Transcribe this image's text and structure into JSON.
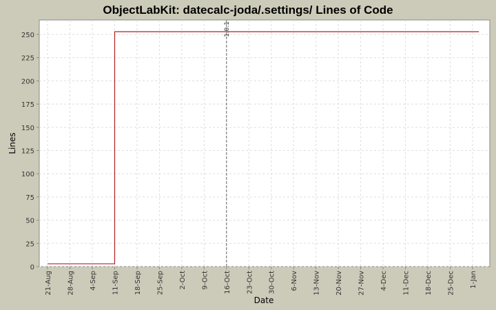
{
  "chart_data": {
    "type": "line",
    "title": "ObjectLabKit: datecalc-joda/.settings/ Lines of Code",
    "x_label": "Date",
    "y_label": "Lines",
    "x": [
      0,
      21,
      21,
      135
    ],
    "series": [
      {
        "name": "Lines",
        "color": "#b02020",
        "values": [
          3,
          3,
          253,
          253
        ]
      }
    ],
    "xlim": [
      -2.6,
      138.4
    ],
    "xticks": [
      {
        "value": 0,
        "label": "21-Aug"
      },
      {
        "value": 7,
        "label": "28-Aug"
      },
      {
        "value": 14,
        "label": "4-Sep"
      },
      {
        "value": 21,
        "label": "11-Sep"
      },
      {
        "value": 28,
        "label": "18-Sep"
      },
      {
        "value": 35,
        "label": "25-Sep"
      },
      {
        "value": 42,
        "label": "2-Oct"
      },
      {
        "value": 49,
        "label": "9-Oct"
      },
      {
        "value": 56,
        "label": "16-Oct"
      },
      {
        "value": 63,
        "label": "23-Oct"
      },
      {
        "value": 70,
        "label": "30-Oct"
      },
      {
        "value": 77,
        "label": "6-Nov"
      },
      {
        "value": 84,
        "label": "13-Nov"
      },
      {
        "value": 91,
        "label": "20-Nov"
      },
      {
        "value": 98,
        "label": "27-Nov"
      },
      {
        "value": 105,
        "label": "4-Dec"
      },
      {
        "value": 112,
        "label": "11-Dec"
      },
      {
        "value": 119,
        "label": "18-Dec"
      },
      {
        "value": 126,
        "label": "25-Dec"
      },
      {
        "value": 133,
        "label": "1-Jan"
      }
    ],
    "ylim": [
      0,
      265.6
    ],
    "yticks": [
      0,
      25,
      50,
      75,
      100,
      125,
      150,
      175,
      200,
      225,
      250
    ],
    "grid": true,
    "markers": [
      {
        "x": 56,
        "label": "1.0.1"
      }
    ]
  }
}
